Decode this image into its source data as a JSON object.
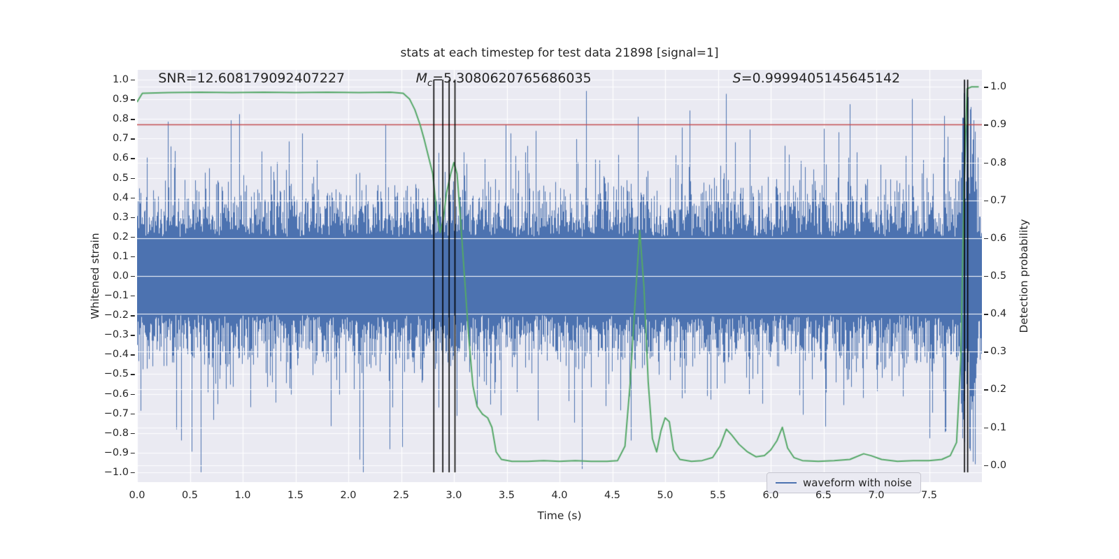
{
  "chart_data": {
    "type": "line",
    "title": "stats at each timestep for test data 21898 [signal=1]",
    "xlabel": "Time (s)",
    "ylabel_left": "Whitened strain",
    "ylabel_right": "Detection probability",
    "xlim": [
      0.0,
      8.0
    ],
    "ylim_left": [
      -1.05,
      1.05
    ],
    "ylim_right": [
      -0.045,
      1.045
    ],
    "grid": true,
    "x_ticks": [
      0.0,
      0.5,
      1.0,
      1.5,
      2.0,
      2.5,
      3.0,
      3.5,
      4.0,
      4.5,
      5.0,
      5.5,
      6.0,
      6.5,
      7.0,
      7.5
    ],
    "y_ticks_left": [
      1.0,
      0.9,
      0.8,
      0.7,
      0.6,
      0.5,
      0.4,
      0.3,
      0.2,
      0.1,
      0.0,
      -0.1,
      -0.2,
      -0.3,
      -0.4,
      -0.5,
      -0.6,
      -0.7,
      -0.8,
      -0.9,
      -1.0
    ],
    "y_ticks_right": [
      1.0,
      0.9,
      0.8,
      0.7,
      0.6,
      0.5,
      0.4,
      0.3,
      0.2,
      0.1,
      0.0
    ],
    "annotations": [
      {
        "var": "SNR",
        "sub": "",
        "rest": "=12.608179092407227",
        "x": 0.2,
        "y": 0.97
      },
      {
        "var": "M",
        "sub": "c",
        "rest": "=5.3080620765686035",
        "x": 2.64,
        "y": 0.97
      },
      {
        "var": "S",
        "sub": "",
        "rest": "=0.9999405145645142",
        "x": 5.64,
        "y": 0.97
      }
    ],
    "threshold": {
      "axis": "right",
      "value": 0.9,
      "color": "#c44e52"
    },
    "event_vlines": {
      "x": [
        2.81,
        2.895,
        2.955,
        3.01,
        7.835,
        7.865
      ],
      "color": "#000000"
    },
    "series": [
      {
        "name": "waveform with noise",
        "type": "noise_band",
        "axis": "left",
        "color": "#4c72b0",
        "render": {
          "seed": 21898,
          "core": 0.2,
          "spread": 0.26,
          "spike_prob": 0.055,
          "signal_region": {
            "x0": 7.8,
            "x1": 7.95
          }
        }
      },
      {
        "name": "detection probability",
        "type": "line",
        "axis": "right",
        "color": "#55a868",
        "points": [
          [
            0.0,
            0.96
          ],
          [
            0.05,
            0.983
          ],
          [
            0.3,
            0.985
          ],
          [
            0.6,
            0.986
          ],
          [
            0.9,
            0.985
          ],
          [
            1.2,
            0.986
          ],
          [
            1.5,
            0.985
          ],
          [
            1.8,
            0.986
          ],
          [
            2.1,
            0.985
          ],
          [
            2.4,
            0.986
          ],
          [
            2.52,
            0.983
          ],
          [
            2.58,
            0.968
          ],
          [
            2.63,
            0.94
          ],
          [
            2.68,
            0.9
          ],
          [
            2.72,
            0.86
          ],
          [
            2.76,
            0.815
          ],
          [
            2.8,
            0.77
          ],
          [
            2.84,
            0.66
          ],
          [
            2.87,
            0.615
          ],
          [
            2.9,
            0.65
          ],
          [
            2.93,
            0.72
          ],
          [
            2.97,
            0.77
          ],
          [
            3.0,
            0.8
          ],
          [
            3.03,
            0.77
          ],
          [
            3.06,
            0.66
          ],
          [
            3.1,
            0.5
          ],
          [
            3.14,
            0.34
          ],
          [
            3.18,
            0.21
          ],
          [
            3.22,
            0.155
          ],
          [
            3.27,
            0.135
          ],
          [
            3.32,
            0.125
          ],
          [
            3.36,
            0.1
          ],
          [
            3.4,
            0.035
          ],
          [
            3.45,
            0.015
          ],
          [
            3.55,
            0.01
          ],
          [
            3.7,
            0.01
          ],
          [
            3.85,
            0.012
          ],
          [
            4.0,
            0.01
          ],
          [
            4.15,
            0.012
          ],
          [
            4.3,
            0.01
          ],
          [
            4.45,
            0.01
          ],
          [
            4.55,
            0.012
          ],
          [
            4.62,
            0.05
          ],
          [
            4.67,
            0.22
          ],
          [
            4.72,
            0.45
          ],
          [
            4.76,
            0.62
          ],
          [
            4.8,
            0.47
          ],
          [
            4.84,
            0.22
          ],
          [
            4.88,
            0.07
          ],
          [
            4.92,
            0.035
          ],
          [
            4.96,
            0.09
          ],
          [
            5.0,
            0.125
          ],
          [
            5.04,
            0.115
          ],
          [
            5.08,
            0.04
          ],
          [
            5.14,
            0.015
          ],
          [
            5.25,
            0.01
          ],
          [
            5.35,
            0.012
          ],
          [
            5.45,
            0.02
          ],
          [
            5.52,
            0.05
          ],
          [
            5.58,
            0.095
          ],
          [
            5.63,
            0.08
          ],
          [
            5.7,
            0.055
          ],
          [
            5.78,
            0.035
          ],
          [
            5.86,
            0.022
          ],
          [
            5.94,
            0.025
          ],
          [
            6.0,
            0.04
          ],
          [
            6.06,
            0.065
          ],
          [
            6.11,
            0.1
          ],
          [
            6.16,
            0.045
          ],
          [
            6.22,
            0.02
          ],
          [
            6.3,
            0.012
          ],
          [
            6.45,
            0.01
          ],
          [
            6.6,
            0.012
          ],
          [
            6.75,
            0.015
          ],
          [
            6.88,
            0.03
          ],
          [
            6.95,
            0.025
          ],
          [
            7.05,
            0.015
          ],
          [
            7.2,
            0.01
          ],
          [
            7.35,
            0.012
          ],
          [
            7.5,
            0.012
          ],
          [
            7.62,
            0.015
          ],
          [
            7.7,
            0.025
          ],
          [
            7.76,
            0.06
          ],
          [
            7.8,
            0.28
          ],
          [
            7.83,
            0.72
          ],
          [
            7.86,
            0.995
          ],
          [
            7.9,
            1.0
          ],
          [
            7.97,
            1.0
          ]
        ]
      }
    ],
    "legend": {
      "entries": [
        "waveform with noise"
      ],
      "position": "lower right"
    },
    "colors": {
      "figure_bg": "#ffffff",
      "plot_bg": "#eaeaf2",
      "grid": "#ffffff",
      "text": "#262626",
      "waveform": "#4c72b0",
      "detection": "#55a868",
      "threshold": "#c44e52",
      "vline": "#000000"
    }
  }
}
